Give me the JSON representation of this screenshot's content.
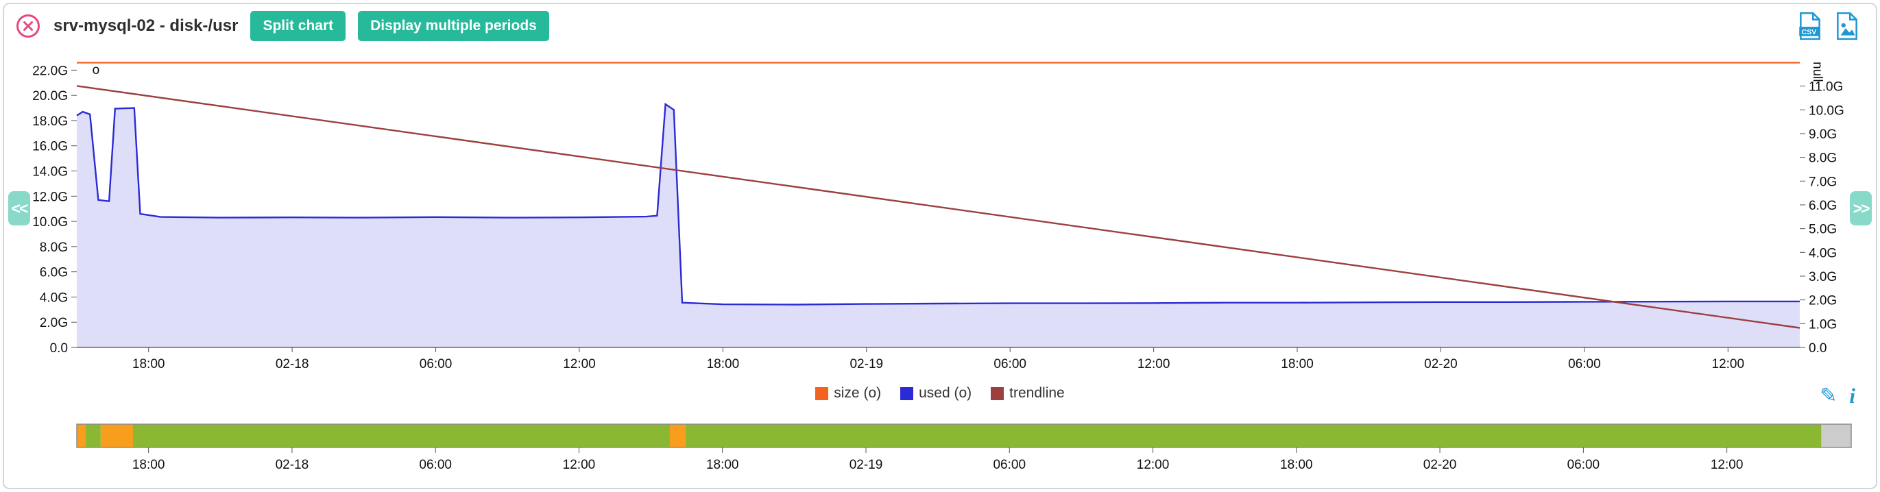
{
  "header": {
    "title": "srv-mysql-02 - disk-/usr",
    "split_button": "Split chart",
    "periods_button": "Display multiple periods"
  },
  "icons": {
    "close": "circle-x-icon",
    "csv_label": "CSV",
    "image_export": "image-file-icon",
    "pan_left": "<<",
    "pan_right": ">>",
    "edit": "✎",
    "info": "i"
  },
  "colors": {
    "accent_teal": "#26b99a",
    "close_pink": "#e5487e",
    "icon_blue": "#1f97d4",
    "size_orange": "#f4621f",
    "used_blue": "#2b2bd5",
    "trendline_maroon": "#9c3f3f",
    "minimap_green": "#8bb832",
    "minimap_orange": "#f89d1c",
    "minimap_gray": "#cccccc"
  },
  "legend": [
    {
      "label": "size (o)",
      "color": "#f4621f"
    },
    {
      "label": "used (o)",
      "color": "#2b2bd5"
    },
    {
      "label": "trendline",
      "color": "#9c3f3f"
    }
  ],
  "chart_data": {
    "type": "area",
    "title": "srv-mysql-02 - disk-/usr",
    "x_unit": "hours (relative)",
    "x_range": [
      0,
      72
    ],
    "x_labels": [
      {
        "t": 3,
        "label": "18:00"
      },
      {
        "t": 9,
        "label": "02-18"
      },
      {
        "t": 15,
        "label": "06:00"
      },
      {
        "t": 21,
        "label": "12:00"
      },
      {
        "t": 27,
        "label": "18:00"
      },
      {
        "t": 33,
        "label": "02-19"
      },
      {
        "t": 39,
        "label": "06:00"
      },
      {
        "t": 45,
        "label": "12:00"
      },
      {
        "t": 51,
        "label": "18:00"
      },
      {
        "t": 57,
        "label": "02-20"
      },
      {
        "t": 63,
        "label": "06:00"
      },
      {
        "t": 69,
        "label": "12:00"
      }
    ],
    "left_axis": {
      "top_value": 23,
      "ticks": [
        {
          "v": 0,
          "label": "0.0"
        },
        {
          "v": 2,
          "label": "2.0G"
        },
        {
          "v": 4,
          "label": "4.0G"
        },
        {
          "v": 6,
          "label": "6.0G"
        },
        {
          "v": 8,
          "label": "8.0G"
        },
        {
          "v": 10,
          "label": "10.0G"
        },
        {
          "v": 12,
          "label": "12.0G"
        },
        {
          "v": 14,
          "label": "14.0G"
        },
        {
          "v": 16,
          "label": "16.0G"
        },
        {
          "v": 18,
          "label": "18.0G"
        },
        {
          "v": 20,
          "label": "20.0G"
        },
        {
          "v": 22,
          "label": "22.0G"
        }
      ]
    },
    "right_axis": {
      "top_value": 12.2,
      "top_label": "null",
      "ticks": [
        {
          "v": 0,
          "label": "0.0"
        },
        {
          "v": 1,
          "label": "1.0G"
        },
        {
          "v": 2,
          "label": "2.0G"
        },
        {
          "v": 3,
          "label": "3.0G"
        },
        {
          "v": 4,
          "label": "4.0G"
        },
        {
          "v": 5,
          "label": "5.0G"
        },
        {
          "v": 6,
          "label": "6.0G"
        },
        {
          "v": 7,
          "label": "7.0G"
        },
        {
          "v": 8,
          "label": "8.0G"
        },
        {
          "v": 9,
          "label": "9.0G"
        },
        {
          "v": 10,
          "label": "10.0G"
        },
        {
          "v": 11,
          "label": "11.0G"
        }
      ]
    },
    "series": [
      {
        "name": "size (o)",
        "type": "line",
        "color": "#f4621f",
        "points": [
          [
            0,
            22.6
          ],
          [
            72,
            22.6
          ]
        ]
      },
      {
        "name": "used (o)",
        "type": "area",
        "color": "#2b2bd5",
        "fill": "rgba(70,70,215,0.18)",
        "points": [
          [
            0,
            18.4
          ],
          [
            0.25,
            18.7
          ],
          [
            0.55,
            18.5
          ],
          [
            0.9,
            11.7
          ],
          [
            1.35,
            11.6
          ],
          [
            1.6,
            18.95
          ],
          [
            2.4,
            19.0
          ],
          [
            2.65,
            10.6
          ],
          [
            3.5,
            10.35
          ],
          [
            6,
            10.3
          ],
          [
            9,
            10.32
          ],
          [
            12,
            10.3
          ],
          [
            15,
            10.34
          ],
          [
            18,
            10.3
          ],
          [
            21,
            10.32
          ],
          [
            23.8,
            10.38
          ],
          [
            24.25,
            10.45
          ],
          [
            24.6,
            19.3
          ],
          [
            24.95,
            18.85
          ],
          [
            25.3,
            3.55
          ],
          [
            27,
            3.42
          ],
          [
            30,
            3.4
          ],
          [
            33,
            3.45
          ],
          [
            36,
            3.48
          ],
          [
            39,
            3.5
          ],
          [
            42,
            3.5
          ],
          [
            45,
            3.52
          ],
          [
            48,
            3.55
          ],
          [
            51,
            3.55
          ],
          [
            54,
            3.58
          ],
          [
            57,
            3.6
          ],
          [
            60,
            3.6
          ],
          [
            63,
            3.62
          ],
          [
            66,
            3.63
          ],
          [
            69,
            3.65
          ],
          [
            72,
            3.65
          ]
        ]
      },
      {
        "name": "trendline",
        "type": "line",
        "color": "#9c3f3f",
        "points": [
          [
            0,
            20.75
          ],
          [
            72,
            1.55
          ]
        ]
      }
    ],
    "annotations": [
      {
        "text": "o",
        "t": 0.8,
        "v": 21.7
      }
    ],
    "minimap": {
      "t_max": 74.2,
      "segments": [
        {
          "from": 0,
          "to": 0.35,
          "color": "#f89d1c"
        },
        {
          "from": 0.35,
          "to": 1.0,
          "color": "#8bb832"
        },
        {
          "from": 1.0,
          "to": 2.35,
          "color": "#f89d1c"
        },
        {
          "from": 2.35,
          "to": 24.8,
          "color": "#8bb832"
        },
        {
          "from": 24.8,
          "to": 25.45,
          "color": "#f89d1c"
        },
        {
          "from": 25.45,
          "to": 72.95,
          "color": "#8bb832"
        },
        {
          "from": 72.95,
          "to": 74.2,
          "color": "#cccccc"
        }
      ]
    }
  }
}
